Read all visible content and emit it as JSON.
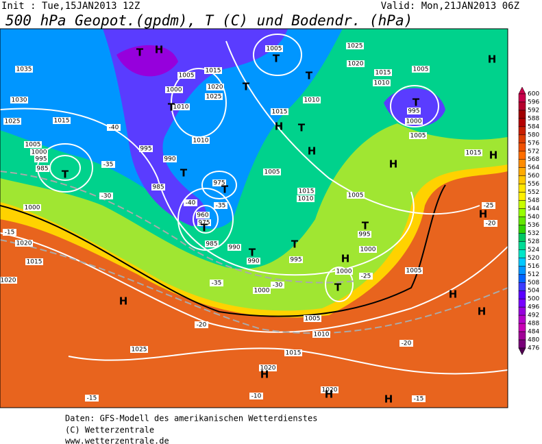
{
  "header": {
    "init": "Init : Tue,15JAN2013 12Z",
    "valid": "Valid: Mon,21JAN2013 06Z",
    "title": "500 hPa Geopot.(gpdm), T (C) und Bodendr. (hPa)"
  },
  "colorbar": {
    "levels": [
      600,
      596,
      592,
      588,
      584,
      580,
      576,
      572,
      568,
      564,
      560,
      556,
      552,
      548,
      544,
      540,
      536,
      532,
      528,
      524,
      520,
      516,
      512,
      508,
      504,
      500,
      496,
      492,
      488,
      484,
      480,
      476
    ],
    "colors": [
      "#c8004b",
      "#b4002d",
      "#a00000",
      "#b40000",
      "#c81e00",
      "#dc3c00",
      "#f05000",
      "#ff6e00",
      "#ff8c00",
      "#ffaa00",
      "#ffc800",
      "#ffe600",
      "#fff000",
      "#c8ff00",
      "#96ff00",
      "#64e600",
      "#32d200",
      "#00c864",
      "#00dc96",
      "#00e6c8",
      "#00c8ff",
      "#0096ff",
      "#0064ff",
      "#3c3cff",
      "#5a00ff",
      "#7800ff",
      "#9600dc",
      "#b400c8",
      "#c800b4",
      "#a00096",
      "#780078",
      "#500050"
    ]
  },
  "map_labels": [
    "1035",
    "1030",
    "1025",
    "1015",
    "1005",
    "1000",
    "995",
    "985",
    "1000",
    "-30",
    "-35",
    "-40",
    "995",
    "990",
    "985",
    "975",
    "-40",
    "-35",
    "960",
    "975",
    "985",
    "990",
    "990",
    "995",
    "1000",
    "-35",
    "-30",
    "1005",
    "1000",
    "1015",
    "1020",
    "1025",
    "1010",
    "1010",
    "1005",
    "1025",
    "1020",
    "1015",
    "1010",
    "1005",
    "995",
    "1000",
    "1005",
    "1015",
    "1010",
    "1015",
    "1005",
    "1015",
    "1010",
    "1005",
    "995",
    "1000",
    "1000",
    "-25",
    "1005",
    "1020",
    "1015",
    "1020",
    "1025",
    "1005",
    "1010",
    "1015",
    "1020",
    "1020",
    "-20",
    "-20",
    "-15",
    "-15",
    "-10",
    "-15",
    "-20",
    "-25",
    "H",
    "T",
    "T",
    "T",
    "T",
    "T",
    "H",
    "T",
    "H",
    "H",
    "T",
    "H",
    "H",
    "T",
    "T",
    "T",
    "T",
    "T",
    "T",
    "H",
    "T",
    "H",
    "H",
    "H",
    "H",
    "H",
    "H",
    "T",
    "H"
  ],
  "footer": [
    "Daten: GFS-Modell des amerikanischen Wetterdienstes",
    "(C) Wetterzentrale",
    "www.wetterzentrale.de"
  ]
}
